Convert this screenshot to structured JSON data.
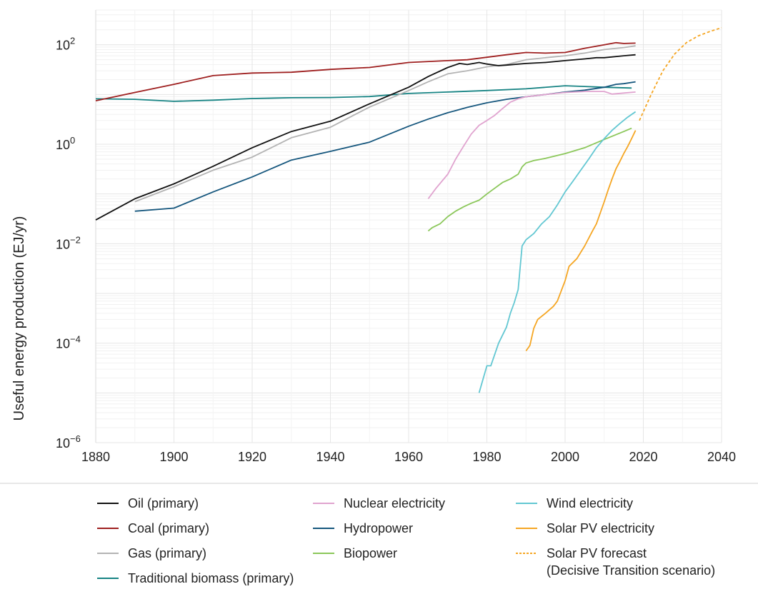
{
  "chart_data": {
    "type": "line",
    "ylabel": "Useful energy production (EJ/yr)",
    "yscale": "log",
    "xlim": [
      1880,
      2040
    ],
    "ylim": [
      1e-06,
      500
    ],
    "grid": true,
    "legend_placement": "bottom",
    "x_ticks": [
      1880,
      1900,
      1920,
      1940,
      1960,
      1980,
      2000,
      2020,
      2040
    ],
    "y_ticks": [
      {
        "value": 1e-06,
        "base": "10",
        "exp": "−6"
      },
      {
        "value": 0.0001,
        "base": "10",
        "exp": "−4"
      },
      {
        "value": 0.01,
        "base": "10",
        "exp": "−2"
      },
      {
        "value": 1,
        "base": "10",
        "exp": "0"
      },
      {
        "value": 100,
        "base": "10",
        "exp": "2"
      }
    ],
    "series": [
      {
        "name": "Oil (primary)",
        "color": "#111111",
        "style": "solid",
        "points": [
          [
            1880,
            0.03
          ],
          [
            1890,
            0.08
          ],
          [
            1900,
            0.16
          ],
          [
            1910,
            0.36
          ],
          [
            1920,
            0.85
          ],
          [
            1930,
            1.8
          ],
          [
            1940,
            2.9
          ],
          [
            1950,
            6.5
          ],
          [
            1960,
            14
          ],
          [
            1965,
            23
          ],
          [
            1970,
            35
          ],
          [
            1973,
            42
          ],
          [
            1975,
            40
          ],
          [
            1978,
            44
          ],
          [
            1980,
            41
          ],
          [
            1983,
            38
          ],
          [
            1985,
            39
          ],
          [
            1990,
            42
          ],
          [
            1995,
            44
          ],
          [
            2000,
            48
          ],
          [
            2005,
            52
          ],
          [
            2008,
            55
          ],
          [
            2010,
            55
          ],
          [
            2015,
            60
          ],
          [
            2018,
            63
          ]
        ]
      },
      {
        "name": "Coal (primary)",
        "color": "#9e1f1f",
        "style": "solid",
        "points": [
          [
            1880,
            7.5
          ],
          [
            1890,
            11
          ],
          [
            1900,
            16
          ],
          [
            1910,
            24
          ],
          [
            1920,
            27
          ],
          [
            1930,
            28
          ],
          [
            1940,
            32
          ],
          [
            1950,
            35
          ],
          [
            1960,
            44
          ],
          [
            1970,
            48
          ],
          [
            1975,
            50
          ],
          [
            1980,
            56
          ],
          [
            1985,
            63
          ],
          [
            1990,
            70
          ],
          [
            1995,
            68
          ],
          [
            2000,
            70
          ],
          [
            2005,
            85
          ],
          [
            2010,
            100
          ],
          [
            2013,
            110
          ],
          [
            2015,
            106
          ],
          [
            2018,
            108
          ]
        ]
      },
      {
        "name": "Gas (primary)",
        "color": "#b3b3b3",
        "style": "solid",
        "points": [
          [
            1890,
            0.07
          ],
          [
            1900,
            0.14
          ],
          [
            1910,
            0.3
          ],
          [
            1920,
            0.55
          ],
          [
            1930,
            1.35
          ],
          [
            1940,
            2.2
          ],
          [
            1950,
            5.6
          ],
          [
            1960,
            12
          ],
          [
            1965,
            18
          ],
          [
            1970,
            26
          ],
          [
            1975,
            30
          ],
          [
            1980,
            36
          ],
          [
            1985,
            40
          ],
          [
            1990,
            50
          ],
          [
            1995,
            55
          ],
          [
            2000,
            60
          ],
          [
            2005,
            68
          ],
          [
            2010,
            80
          ],
          [
            2015,
            88
          ],
          [
            2018,
            95
          ]
        ]
      },
      {
        "name": "Traditional biomass (primary)",
        "color": "#168383",
        "style": "solid",
        "points": [
          [
            1880,
            8.2
          ],
          [
            1890,
            8
          ],
          [
            1900,
            7.3
          ],
          [
            1910,
            7.7
          ],
          [
            1920,
            8.3
          ],
          [
            1930,
            8.6
          ],
          [
            1940,
            8.7
          ],
          [
            1950,
            9.1
          ],
          [
            1960,
            10.5
          ],
          [
            1970,
            11.2
          ],
          [
            1980,
            12
          ],
          [
            1990,
            13
          ],
          [
            2000,
            15
          ],
          [
            2005,
            14.5
          ],
          [
            2010,
            14
          ],
          [
            2017,
            13.5
          ]
        ]
      },
      {
        "name": "Nuclear electricity",
        "color": "#e0a3cf",
        "style": "solid",
        "points": [
          [
            1965,
            0.08
          ],
          [
            1967,
            0.13
          ],
          [
            1970,
            0.25
          ],
          [
            1972,
            0.5
          ],
          [
            1974,
            0.9
          ],
          [
            1976,
            1.6
          ],
          [
            1978,
            2.4
          ],
          [
            1980,
            3
          ],
          [
            1982,
            3.8
          ],
          [
            1984,
            5.2
          ],
          [
            1986,
            7
          ],
          [
            1988,
            8.2
          ],
          [
            1990,
            9
          ],
          [
            1995,
            10
          ],
          [
            2000,
            11
          ],
          [
            2005,
            11.5
          ],
          [
            2010,
            11.5
          ],
          [
            2012,
            10.2
          ],
          [
            2015,
            10.7
          ],
          [
            2018,
            11.2
          ]
        ]
      },
      {
        "name": "Hydropower",
        "color": "#15567d",
        "style": "solid",
        "points": [
          [
            1890,
            0.045
          ],
          [
            1900,
            0.052
          ],
          [
            1910,
            0.11
          ],
          [
            1920,
            0.22
          ],
          [
            1930,
            0.48
          ],
          [
            1940,
            0.72
          ],
          [
            1950,
            1.1
          ],
          [
            1960,
            2.3
          ],
          [
            1965,
            3.2
          ],
          [
            1970,
            4.3
          ],
          [
            1975,
            5.5
          ],
          [
            1980,
            6.8
          ],
          [
            1985,
            8
          ],
          [
            1990,
            9
          ],
          [
            1995,
            10
          ],
          [
            2000,
            11.2
          ],
          [
            2005,
            12.2
          ],
          [
            2010,
            14
          ],
          [
            2013,
            16
          ],
          [
            2015,
            16.5
          ],
          [
            2018,
            18
          ]
        ]
      },
      {
        "name": "Biopower",
        "color": "#8bc75a",
        "style": "solid",
        "points": [
          [
            1965,
            0.018
          ],
          [
            1966,
            0.021
          ],
          [
            1968,
            0.025
          ],
          [
            1970,
            0.035
          ],
          [
            1972,
            0.045
          ],
          [
            1974,
            0.055
          ],
          [
            1976,
            0.065
          ],
          [
            1978,
            0.075
          ],
          [
            1980,
            0.1
          ],
          [
            1982,
            0.13
          ],
          [
            1984,
            0.17
          ],
          [
            1986,
            0.2
          ],
          [
            1988,
            0.25
          ],
          [
            1989,
            0.35
          ],
          [
            1990,
            0.42
          ],
          [
            1992,
            0.47
          ],
          [
            1995,
            0.52
          ],
          [
            2000,
            0.65
          ],
          [
            2005,
            0.85
          ],
          [
            2010,
            1.25
          ],
          [
            2015,
            1.8
          ],
          [
            2017,
            2.1
          ]
        ]
      },
      {
        "name": "Wind electricity",
        "color": "#62c7d2",
        "style": "solid",
        "points": [
          [
            1978,
            1e-05
          ],
          [
            1980,
            3.5e-05
          ],
          [
            1981,
            3.5e-05
          ],
          [
            1983,
            0.0001
          ],
          [
            1985,
            0.00021
          ],
          [
            1986,
            0.0004
          ],
          [
            1987,
            0.00065
          ],
          [
            1988,
            0.0012
          ],
          [
            1989,
            0.009
          ],
          [
            1990,
            0.012
          ],
          [
            1992,
            0.016
          ],
          [
            1994,
            0.025
          ],
          [
            1996,
            0.035
          ],
          [
            1998,
            0.06
          ],
          [
            2000,
            0.11
          ],
          [
            2002,
            0.18
          ],
          [
            2004,
            0.3
          ],
          [
            2006,
            0.5
          ],
          [
            2008,
            0.85
          ],
          [
            2010,
            1.3
          ],
          [
            2012,
            1.9
          ],
          [
            2014,
            2.6
          ],
          [
            2016,
            3.5
          ],
          [
            2018,
            4.5
          ]
        ]
      },
      {
        "name": "Solar PV electricity",
        "color": "#f5a623",
        "style": "solid",
        "points": [
          [
            1990,
            7e-05
          ],
          [
            1991,
            9e-05
          ],
          [
            1992,
            0.0002
          ],
          [
            1993,
            0.0003
          ],
          [
            1995,
            0.0004
          ],
          [
            1997,
            0.00055
          ],
          [
            1998,
            0.0007
          ],
          [
            2000,
            0.0018
          ],
          [
            2001,
            0.0035
          ],
          [
            2003,
            0.005
          ],
          [
            2005,
            0.009
          ],
          [
            2007,
            0.018
          ],
          [
            2008,
            0.025
          ],
          [
            2010,
            0.07
          ],
          [
            2011,
            0.12
          ],
          [
            2012,
            0.2
          ],
          [
            2013,
            0.32
          ],
          [
            2014,
            0.45
          ],
          [
            2015,
            0.65
          ],
          [
            2016,
            0.9
          ],
          [
            2017,
            1.3
          ],
          [
            2018,
            1.9
          ]
        ]
      },
      {
        "name": "Solar PV forecast\n(Decisive Transition scenario)",
        "color": "#f5a623",
        "style": "dashed",
        "points": [
          [
            2019,
            3
          ],
          [
            2022,
            10
          ],
          [
            2025,
            30
          ],
          [
            2028,
            65
          ],
          [
            2031,
            110
          ],
          [
            2034,
            150
          ],
          [
            2037,
            185
          ],
          [
            2040,
            220
          ]
        ]
      }
    ]
  },
  "legend": {
    "columns": [
      [
        "Oil (primary)",
        "Coal (primary)",
        "Gas (primary)",
        "Traditional biomass (primary)"
      ],
      [
        "Nuclear electricity",
        "Hydropower",
        "Biopower"
      ],
      [
        "Wind electricity",
        "Solar PV electricity",
        "Solar PV forecast\n(Decisive Transition scenario)"
      ]
    ]
  }
}
